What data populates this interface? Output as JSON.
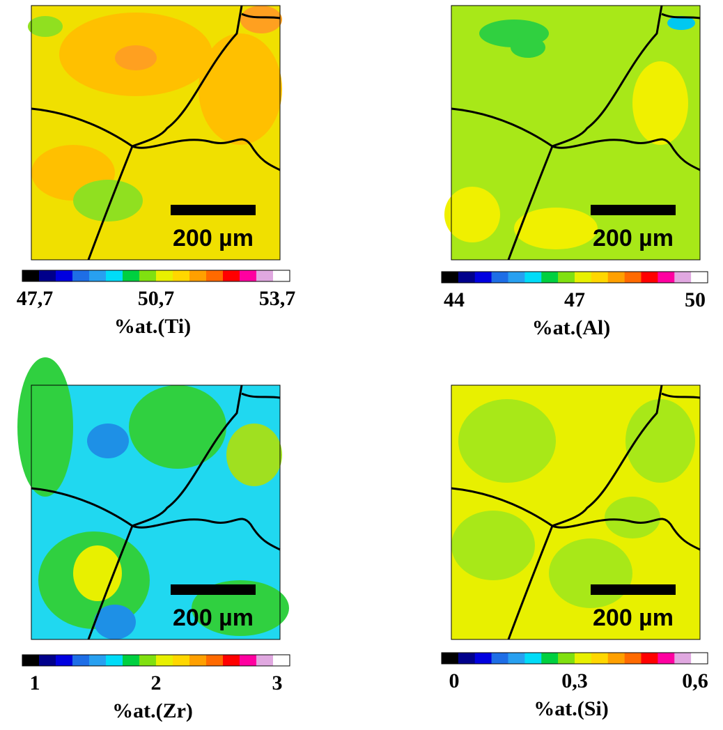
{
  "colorbar_colors": [
    "#000000",
    "#00008b",
    "#0000e0",
    "#1e6ee6",
    "#28a0f0",
    "#00dcf8",
    "#00d040",
    "#80e010",
    "#e8f000",
    "#ffd700",
    "#ffa000",
    "#ff6a00",
    "#ff0000",
    "#ff00a0",
    "#e0a8e0",
    "#ffffff"
  ],
  "panels": [
    {
      "scale_bar": "200 µm",
      "ticks": [
        {
          "value": 47.7,
          "label": "47,7"
        },
        {
          "value": 50.7,
          "label": "50,7"
        },
        {
          "value": 53.7,
          "label": "53,7"
        }
      ],
      "label": "%at.(Ti)"
    },
    {
      "scale_bar": "200 µm",
      "ticks": [
        44,
        47,
        50
      ],
      "label": "%at.(Al)"
    },
    {
      "scale_bar": "200 µm",
      "ticks": [
        1,
        2,
        3
      ],
      "label": "%at.(Zr)"
    },
    {
      "scale_bar": "200 µm",
      "ticks": [
        0,
        {
          "value": 0.3,
          "label": "0,3"
        },
        {
          "value": 0.6,
          "label": "0,6"
        }
      ],
      "label": "%at.(Si)"
    }
  ]
}
